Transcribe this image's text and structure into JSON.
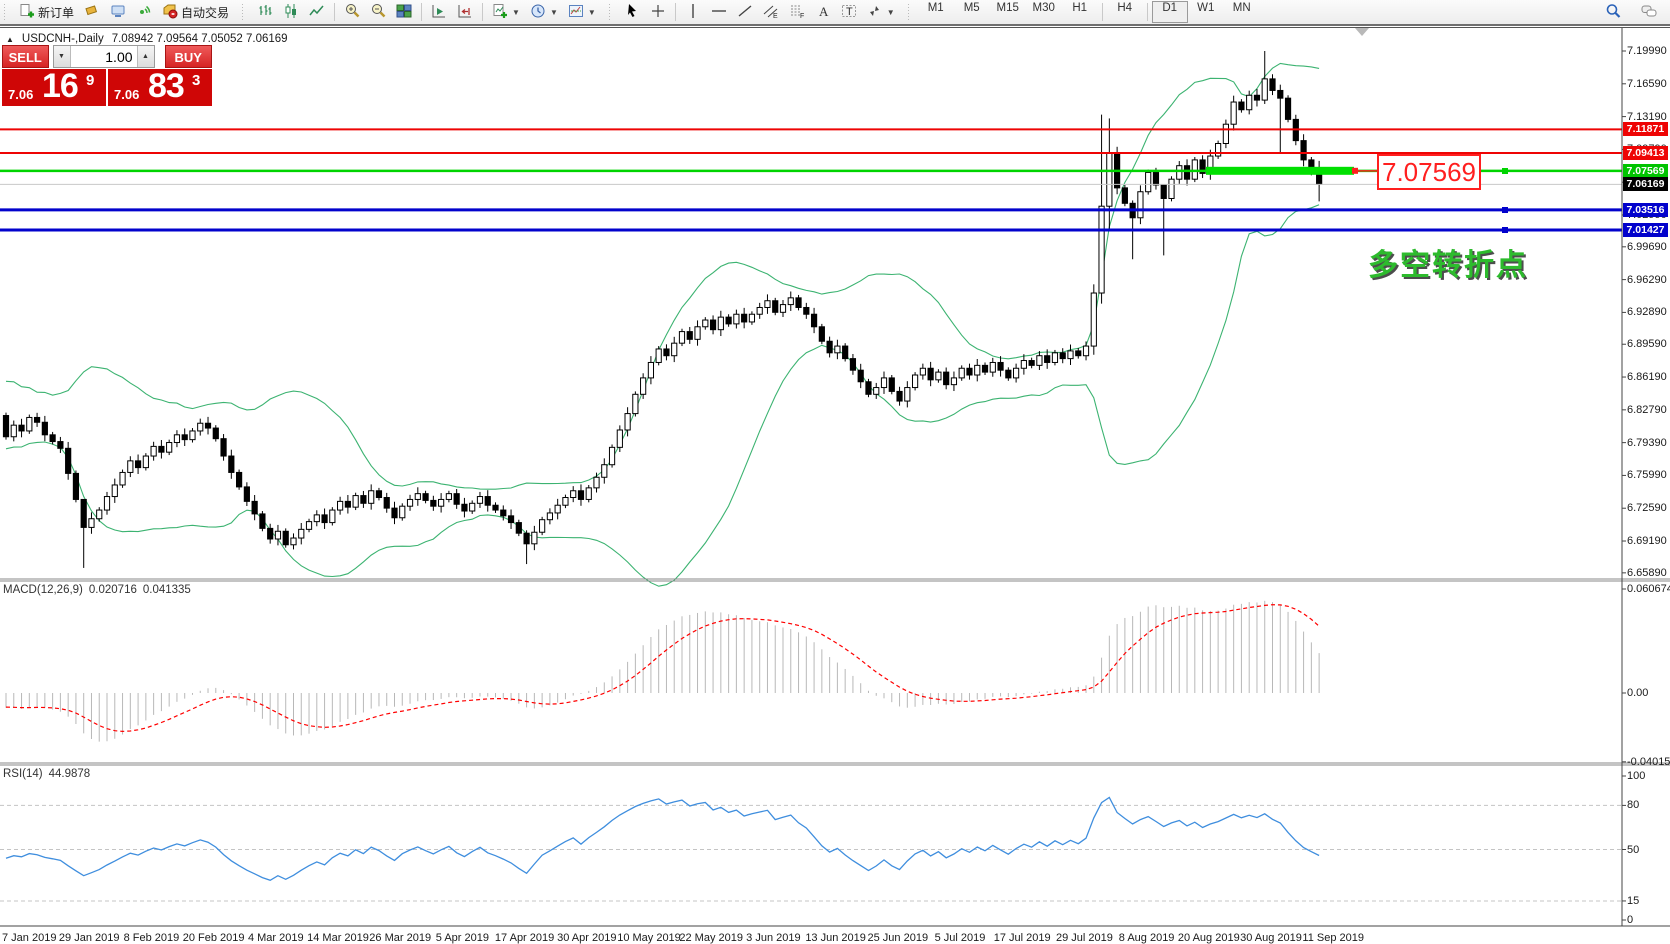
{
  "toolbar": {
    "new_order_label": "新订单",
    "autotrading_label": "自动交易",
    "timeframes": [
      "M1",
      "M5",
      "M15",
      "M30",
      "H1",
      "H4",
      "D1",
      "W1",
      "MN"
    ],
    "active_timeframe": "D1",
    "icon_buttons_left": [
      "new-order",
      "gold",
      "hosting",
      "signals",
      "autotrading"
    ],
    "icon_buttons_chart": [
      "bars-chart",
      "candles-chart",
      "line-chart",
      "zoom-in",
      "zoom-out",
      "tile-windows",
      "auto-scroll",
      "chart-shift",
      "new-chart",
      "period-clock",
      "template"
    ],
    "icon_buttons_tools": [
      "cursor",
      "crosshair",
      "vertical-line",
      "horizontal-line",
      "trendline",
      "equidistant-channel",
      "fibonacci",
      "text",
      "text-label",
      "arrows"
    ],
    "icon_buttons_right": [
      "search",
      "chat"
    ]
  },
  "chart_header": {
    "symbol_arrow": "▲",
    "symbol_period": "USDCNH-,Daily",
    "ohlc": "7.08942 7.09564 7.05052 7.06169"
  },
  "quote_panel": {
    "sell_label": "SELL",
    "buy_label": "BUY",
    "volume": "1.00",
    "sell_price": {
      "small": "7.06",
      "big": "16",
      "sup": "9"
    },
    "buy_price": {
      "small": "7.06",
      "big": "83",
      "sup": "3"
    }
  },
  "indicator_labels": {
    "macd": {
      "name": "MACD(12,26,9)",
      "value_main": "0.020716",
      "value_signal": "0.041335"
    },
    "rsi": {
      "name": "RSI(14)",
      "value": "44.9878"
    }
  },
  "annotations": {
    "turning_point": "多空转折点",
    "price_callout": "7.07569"
  },
  "levels": [
    {
      "value": 7.11871,
      "label": "7.11871",
      "line_color": "#ee0404",
      "line_width": 2,
      "box_bg": "#ee0404"
    },
    {
      "value": 7.09413,
      "label": "7.09413",
      "line_color": "#ee0404",
      "line_width": 2,
      "box_bg": "#ee0404"
    },
    {
      "value": 7.07569,
      "label": "7.07569",
      "line_color": "#00d400",
      "line_width": 2.5,
      "box_bg": "#00c400",
      "handle": true
    },
    {
      "value": 7.06169,
      "label": "7.06169",
      "line_color": "#c8c8c8",
      "line_width": 1,
      "box_bg": "#000000"
    },
    {
      "value": 7.03516,
      "label": "7.03516",
      "line_color": "#0202cc",
      "line_width": 3,
      "box_bg": "#0202cc",
      "handle": true
    },
    {
      "value": 7.01427,
      "label": "7.01427",
      "line_color": "#0202cc",
      "line_width": 3,
      "box_bg": "#0202cc",
      "handle": true
    }
  ],
  "axis": {
    "price_ticks": [
      "7.19990",
      "7.16590",
      "7.13190",
      "7.09790",
      "7.06390",
      "7.02990",
      "6.99690",
      "6.96290",
      "6.92890",
      "6.89590",
      "6.86190",
      "6.82790",
      "6.79390",
      "6.75990",
      "6.72590",
      "6.69190",
      "6.65890"
    ],
    "macd_ticks": [
      {
        "label": "0.060674",
        "value": 0.060674
      },
      {
        "label": "0.00",
        "value": 0
      },
      {
        "label": "-0.040152",
        "value": -0.040152
      }
    ],
    "rsi_ticks": [
      {
        "label": "100",
        "value": 100
      },
      {
        "label": "80",
        "value": 80
      },
      {
        "label": "50",
        "value": 50
      },
      {
        "label": "15",
        "value": 15
      },
      {
        "label": "0",
        "value": 0
      }
    ],
    "dates": [
      "7 Jan 2019",
      "29 Jan 2019",
      "8 Feb 2019",
      "20 Feb 2019",
      "4 Mar 2019",
      "14 Mar 2019",
      "26 Mar 2019",
      "5 Apr 2019",
      "17 Apr 2019",
      "30 Apr 2019",
      "10 May 2019",
      "22 May 2019",
      "3 Jun 2019",
      "13 Jun 2019",
      "25 Jun 2019",
      "5 Jul 2019",
      "17 Jul 2019",
      "29 Jul 2019",
      "8 Aug 2019",
      "20 Aug 2019",
      "30 Aug 2019",
      "11 Sep 2019"
    ]
  },
  "chart_data": {
    "type": "candlestick",
    "symbol": "USDCNH-",
    "period": "Daily",
    "warmup_closes": [
      6.862,
      6.8,
      6.855,
      6.795,
      6.85,
      6.8,
      6.845,
      6.805,
      6.84,
      6.81,
      6.838,
      6.812,
      6.835,
      6.815,
      6.832,
      6.818,
      6.83,
      6.82,
      6.828,
      6.822
    ],
    "closes": [
      6.8,
      6.812,
      6.806,
      6.82,
      6.815,
      6.802,
      6.795,
      6.788,
      6.762,
      6.735,
      6.706,
      6.715,
      6.724,
      6.738,
      6.75,
      6.763,
      6.775,
      6.768,
      6.78,
      6.79,
      6.784,
      6.794,
      6.802,
      6.797,
      6.806,
      6.814,
      6.809,
      6.798,
      6.78,
      6.763,
      6.748,
      6.733,
      6.72,
      6.705,
      6.694,
      6.702,
      6.688,
      6.695,
      6.704,
      6.712,
      6.719,
      6.711,
      6.724,
      6.733,
      6.727,
      6.739,
      6.731,
      6.744,
      6.737,
      6.726,
      6.716,
      6.728,
      6.735,
      6.741,
      6.734,
      6.728,
      6.735,
      6.741,
      6.73,
      6.723,
      6.731,
      6.738,
      6.729,
      6.724,
      6.718,
      6.711,
      6.7,
      6.689,
      6.701,
      6.714,
      6.721,
      6.729,
      6.737,
      6.744,
      6.735,
      6.747,
      6.758,
      6.771,
      6.789,
      6.807,
      6.824,
      6.844,
      6.861,
      6.877,
      6.891,
      6.884,
      6.897,
      6.909,
      6.901,
      6.914,
      6.921,
      6.911,
      6.924,
      6.917,
      6.927,
      6.919,
      6.927,
      6.934,
      6.941,
      6.929,
      6.937,
      6.944,
      6.934,
      6.927,
      6.914,
      6.899,
      6.887,
      6.894,
      6.881,
      6.869,
      6.857,
      6.844,
      6.851,
      6.861,
      6.847,
      6.837,
      6.851,
      6.864,
      6.871,
      6.859,
      6.867,
      6.854,
      6.861,
      6.871,
      6.864,
      6.874,
      6.867,
      6.877,
      6.869,
      6.861,
      6.871,
      6.879,
      6.874,
      6.884,
      6.877,
      6.887,
      6.881,
      6.889,
      6.884,
      6.894,
      6.949,
      7.039,
      7.094,
      7.058,
      7.042,
      7.027,
      7.054,
      7.074,
      7.061,
      7.047,
      7.067,
      7.081,
      7.067,
      7.087,
      7.073,
      7.091,
      7.104,
      7.124,
      7.147,
      7.139,
      7.154,
      7.149,
      7.171,
      7.159,
      7.151,
      7.129,
      7.107,
      7.087,
      7.074,
      7.0617
    ],
    "wick_overrides": {
      "10": [
        6.728,
        6.664
      ],
      "67": [
        6.703,
        6.668
      ],
      "140": [
        6.958,
        6.885
      ],
      "141": [
        7.134,
        6.938
      ],
      "142": [
        7.13,
        7.015
      ],
      "145": [
        7.045,
        6.984
      ],
      "149": [
        7.06,
        6.988
      ],
      "162": [
        7.1999,
        7.145
      ],
      "164": [
        7.165,
        7.095
      ],
      "169": [
        7.086,
        7.044
      ]
    },
    "indicators": {
      "bollinger": {
        "period": 20,
        "deviation": 2
      },
      "macd": {
        "fast": 12,
        "slow": 26,
        "signal": 9
      },
      "rsi": {
        "period": 14,
        "levels": [
          80,
          50,
          15
        ]
      }
    },
    "colors": {
      "bull": "#ffffff",
      "bear": "#000000",
      "outline": "#000000",
      "bollinger": "#3cb371",
      "macd_hist": "#b8b8b8",
      "macd_signal": "#ff0000",
      "rsi": "#3f8ede",
      "rsi_levels": "#c4c4c4"
    },
    "thick_zone": {
      "price": 7.07569,
      "color": "#00e000"
    }
  }
}
